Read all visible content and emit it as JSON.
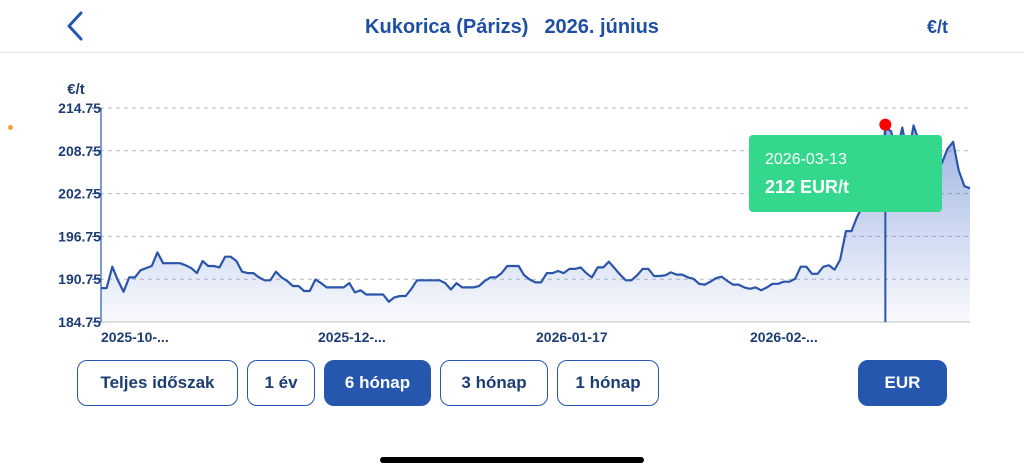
{
  "header": {
    "title_product": "Kukorica (Párizs)",
    "title_period": "2026. június",
    "unit_button": "€/t",
    "back_icon": "chevron-left-icon"
  },
  "tooltip": {
    "date": "2026-03-13",
    "value": "212 EUR/t"
  },
  "ranges": [
    {
      "label": "Teljes időszak",
      "active": false
    },
    {
      "label": "1 év",
      "active": false
    },
    {
      "label": "6 hónap",
      "active": true
    },
    {
      "label": "3 hónap",
      "active": false
    },
    {
      "label": "1 hónap",
      "active": false
    }
  ],
  "currency_button": "EUR",
  "colors": {
    "primary": "#2457ad",
    "title": "#1f4fa3",
    "tooltip": "#33d88c",
    "highlight": "#ff0000",
    "line": "#2b55a8"
  },
  "chart_data": {
    "type": "area",
    "ylabel": "€/t",
    "ylim": [
      184.75,
      214.75
    ],
    "y_ticks": [
      184.75,
      190.75,
      196.75,
      202.75,
      208.75,
      214.75
    ],
    "x_tick_labels": [
      "2025-10-...",
      "2025-12-...",
      "2026-01-17",
      "2026-02-..."
    ],
    "grid": true,
    "highlight": {
      "date": "2026-03-13",
      "value": 212
    },
    "series": [
      {
        "values": [
          189.5,
          189.5,
          192.5,
          190.6,
          189,
          191,
          191,
          192,
          192.3,
          192.6,
          194.5,
          193,
          193,
          193,
          193,
          192.7,
          192.3,
          191.6,
          193.3,
          192.6,
          192.6,
          192.4,
          193.9,
          193.9,
          193.3,
          191.8,
          191.6,
          191.6,
          191,
          190.6,
          190.6,
          191.8,
          191,
          190.5,
          189.8,
          189.8,
          189.1,
          189.1,
          190.7,
          190.2,
          189.6,
          189.6,
          189.6,
          189.6,
          190.2,
          188.9,
          189.2,
          188.6,
          188.6,
          188.6,
          188.6,
          187.6,
          188.2,
          188.4,
          188.4,
          189.4,
          190.6,
          190.6,
          190.6,
          190.6,
          190.6,
          190.2,
          189.3,
          190.2,
          189.6,
          189.6,
          189.6,
          189.8,
          190.5,
          191,
          191,
          191.6,
          192.6,
          192.6,
          192.6,
          191.3,
          190.7,
          190.3,
          190.3,
          191.6,
          191.6,
          191.9,
          191.6,
          192.2,
          192.2,
          192.4,
          191.6,
          191,
          192.4,
          192.4,
          193.2,
          192.3,
          191.4,
          190.6,
          190.6,
          191.3,
          192.2,
          192.2,
          191.2,
          191.2,
          191.3,
          191.7,
          191.4,
          191.4,
          191,
          190.8,
          190.1,
          190,
          190.4,
          190.9,
          191.1,
          190.5,
          190,
          190,
          189.6,
          189.4,
          189.6,
          189.2,
          189.6,
          190.1,
          190.1,
          190.4,
          190.4,
          190.8,
          192.5,
          192.5,
          191.5,
          191.5,
          192.5,
          192.7,
          192.1,
          193.5,
          197.5,
          197.5,
          199.5,
          201,
          202.5,
          203.5,
          205,
          212,
          211.5,
          208.5,
          212,
          208,
          212.3,
          210,
          209.5,
          208.5,
          207.5,
          207,
          209,
          210,
          206,
          203.8,
          203.5
        ]
      }
    ]
  }
}
